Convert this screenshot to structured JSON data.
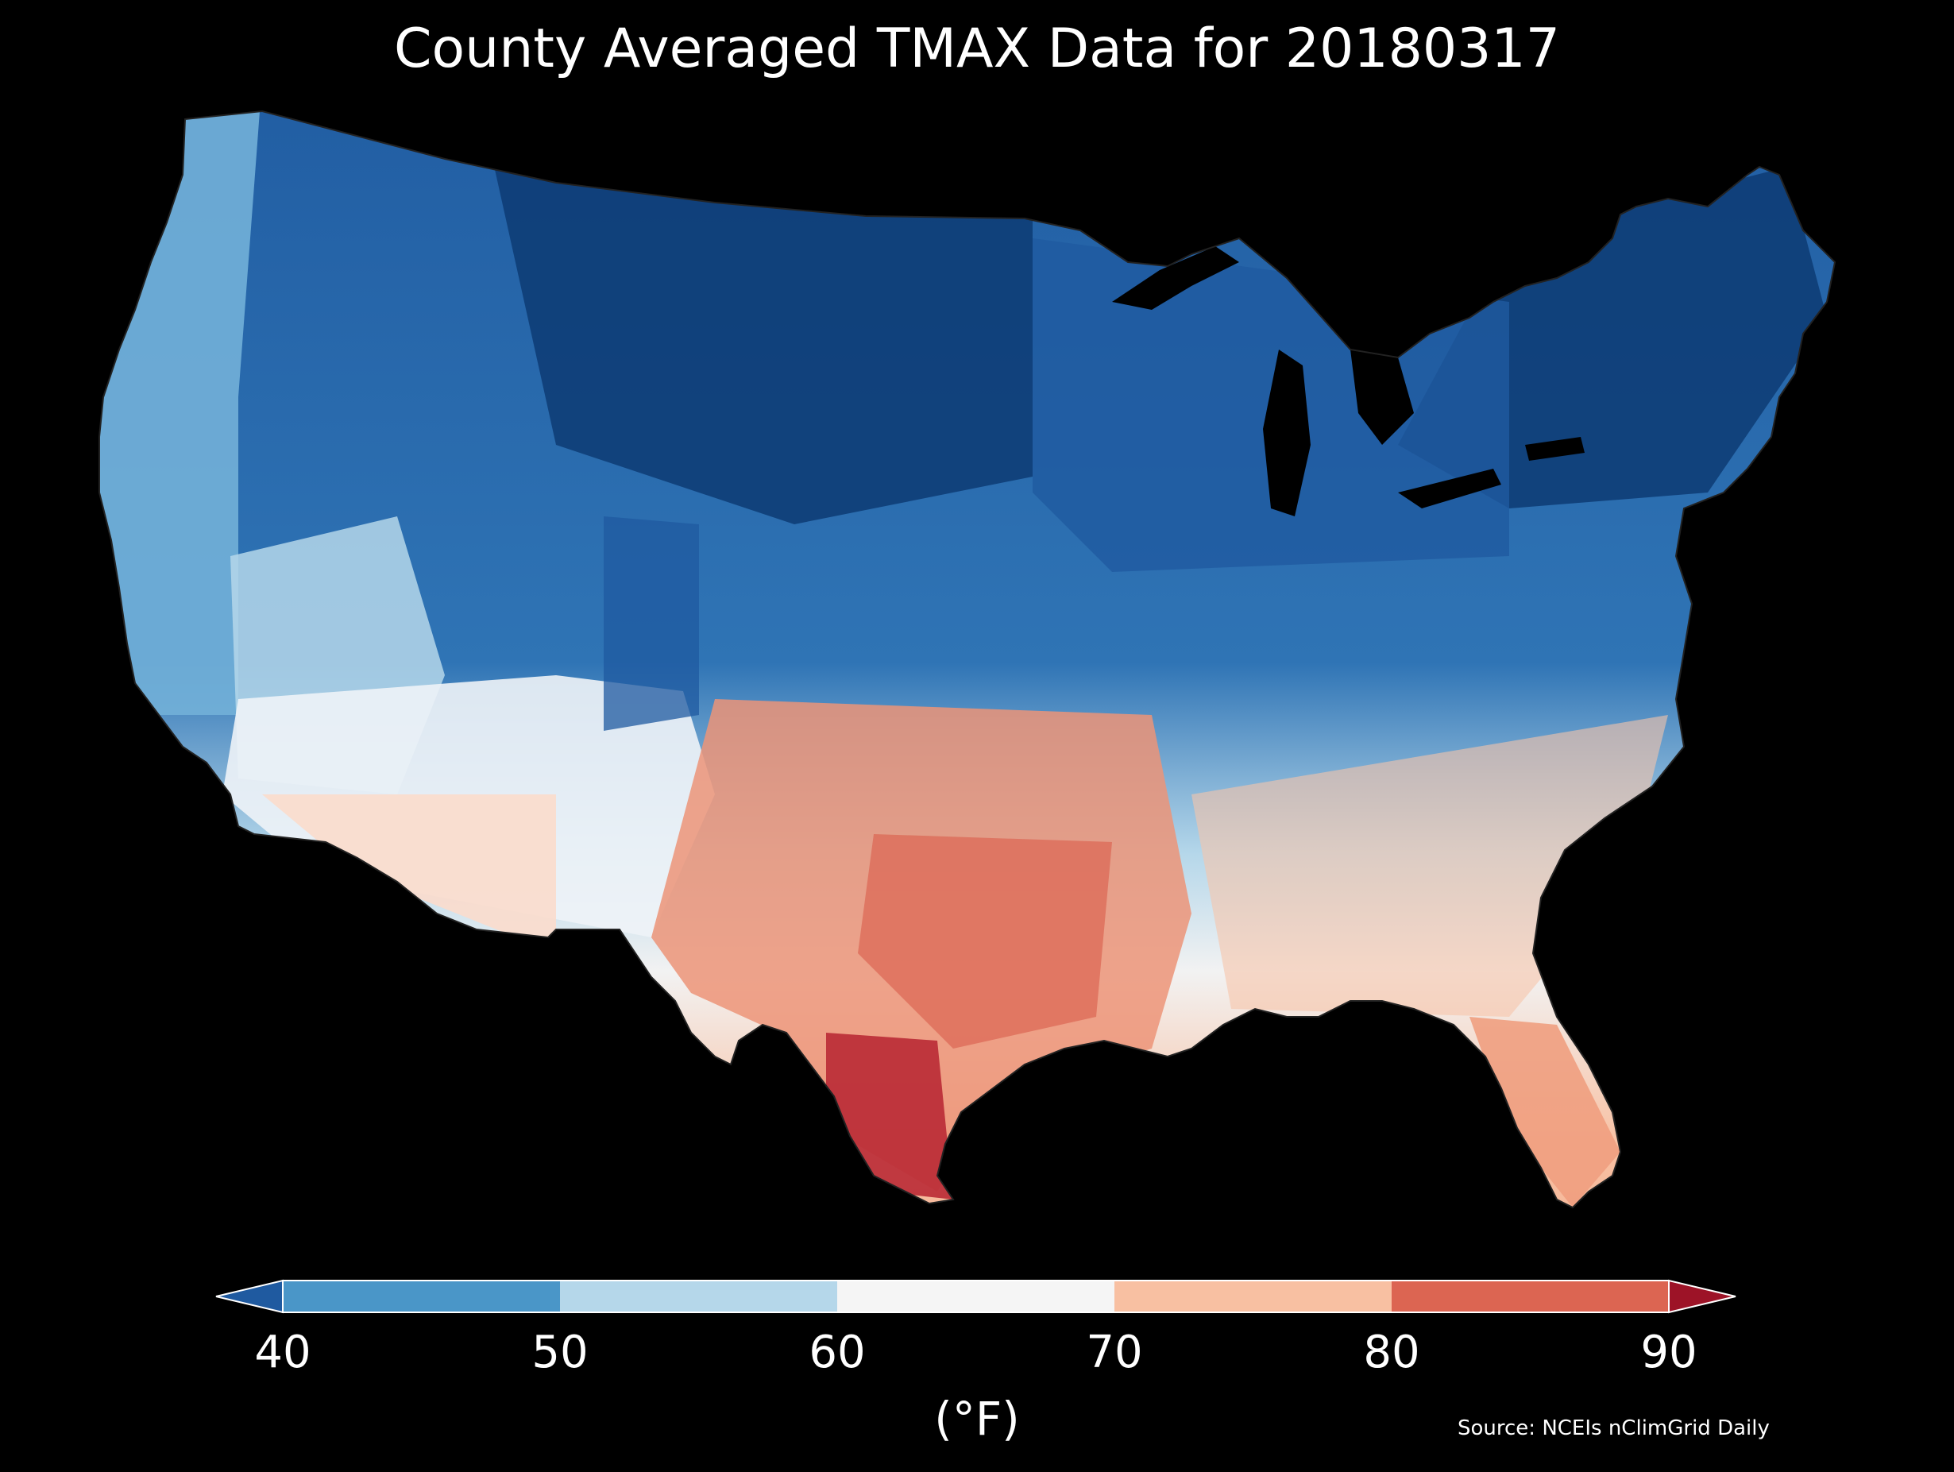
{
  "title": "County Averaged TMAX Data for 20180317",
  "colorbar": {
    "unit_label": "(°F)",
    "ticks": [
      "40",
      "50",
      "60",
      "70",
      "80",
      "90"
    ],
    "bins": [
      {
        "range": "<40",
        "color": "#1f5aa0"
      },
      {
        "range": "40-50",
        "color": "#4a96c8"
      },
      {
        "range": "50-60",
        "color": "#b5d7ea"
      },
      {
        "range": "60-70",
        "color": "#f5f5f5"
      },
      {
        "range": "70-80",
        "color": "#f8c0a2"
      },
      {
        "range": "80-90",
        "color": "#dc6552"
      },
      {
        "range": ">90",
        "color": "#9d1327"
      }
    ]
  },
  "source": "Source: NCEIs nClimGrid Daily",
  "map": {
    "region": "Contiguous United States",
    "variable": "TMAX",
    "colors": {
      "deep_blue": "#0d3b73",
      "dark_blue": "#1f5aa0",
      "mid_blue": "#2f74b5",
      "light_blue": "#4a96c8",
      "pale_blue": "#b5d7ea",
      "near_white": "#f2f2f2",
      "pale_red": "#f8c0a2",
      "light_red": "#ef9e80",
      "mid_red": "#dc6552",
      "dark_red": "#b92a35",
      "background": "#000000"
    }
  }
}
